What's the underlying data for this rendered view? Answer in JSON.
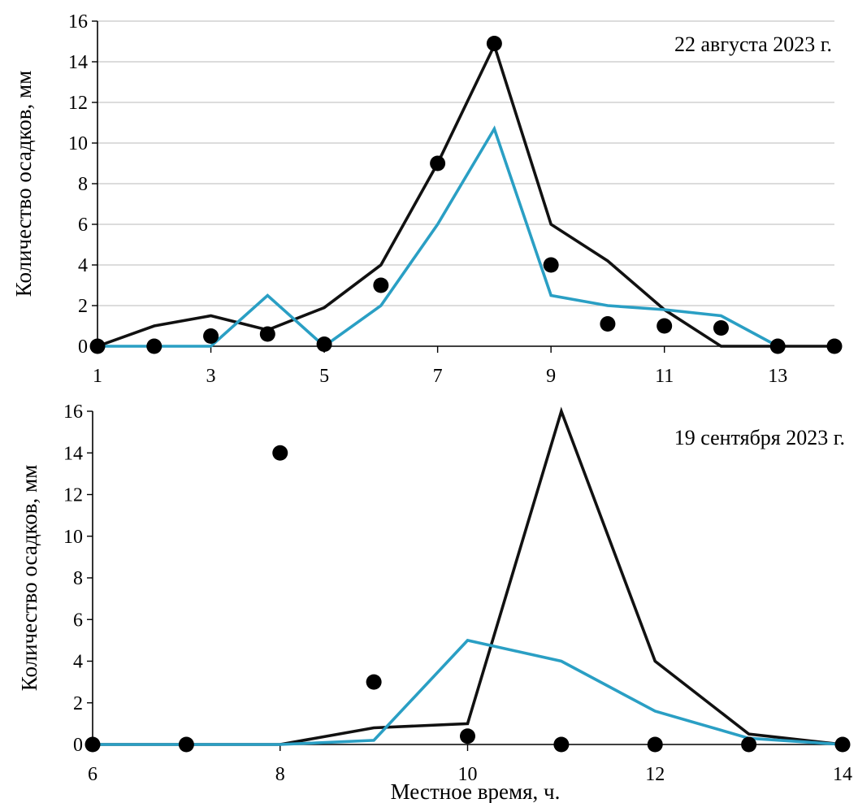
{
  "figure": {
    "xlabel": "Местное время, ч."
  },
  "chart_data": [
    {
      "type": "line",
      "title": "22 августа 2023 г.",
      "ylabel": "Количество осадков, мм",
      "xlabel": "",
      "xlim": [
        1,
        14
      ],
      "ylim": [
        0,
        16
      ],
      "x_ticks": [
        1,
        3,
        5,
        7,
        9,
        11,
        13
      ],
      "y_ticks": [
        0,
        2,
        4,
        6,
        8,
        10,
        12,
        14,
        16
      ],
      "grid": "horizontal",
      "colors": {
        "black_line": "#111111",
        "blue_line": "#2a9fc4",
        "points": "#000000"
      },
      "series": [
        {
          "style": "line-black",
          "x": [
            1,
            2,
            3,
            4,
            5,
            6,
            7,
            8,
            9,
            10,
            11,
            12,
            13,
            14
          ],
          "y": [
            0,
            1.0,
            1.5,
            0.8,
            1.9,
            4.0,
            9.0,
            14.8,
            6.0,
            4.2,
            1.8,
            0,
            0,
            0
          ]
        },
        {
          "style": "line-blue",
          "x": [
            1,
            2,
            3,
            4,
            5,
            6,
            7,
            8,
            9,
            10,
            11,
            12,
            13
          ],
          "y": [
            0,
            0,
            0,
            2.5,
            0,
            2.0,
            6.0,
            10.7,
            2.5,
            2.0,
            1.8,
            1.5,
            0
          ]
        },
        {
          "style": "points",
          "x": [
            1,
            2,
            3,
            4,
            5,
            6,
            7,
            8,
            9,
            10,
            11,
            12,
            13,
            14
          ],
          "y": [
            0,
            0,
            0.5,
            0.6,
            0.1,
            3.0,
            9.0,
            14.9,
            4.0,
            1.1,
            1.0,
            0.9,
            0,
            0
          ]
        }
      ]
    },
    {
      "type": "line",
      "title": "19 сентября 2023 г.",
      "ylabel": "Количество осадков, мм",
      "xlabel": "Местное время, ч.",
      "xlim": [
        6,
        14
      ],
      "ylim": [
        0,
        16
      ],
      "x_ticks": [
        6,
        8,
        10,
        12,
        14
      ],
      "y_ticks": [
        0,
        2,
        4,
        6,
        8,
        10,
        12,
        14,
        16
      ],
      "grid": "none",
      "colors": {
        "black_line": "#111111",
        "blue_line": "#2a9fc4",
        "points": "#000000"
      },
      "series": [
        {
          "style": "line-black",
          "x": [
            6,
            7,
            8,
            9,
            10,
            11,
            12,
            13,
            14
          ],
          "y": [
            0,
            0,
            0,
            0.8,
            1.0,
            16.0,
            4.0,
            0.5,
            0
          ]
        },
        {
          "style": "line-blue",
          "x": [
            6,
            7,
            8,
            9,
            10,
            11,
            12,
            13,
            14
          ],
          "y": [
            0,
            0,
            0,
            0.2,
            5.0,
            4.0,
            1.6,
            0.3,
            0
          ]
        },
        {
          "style": "points",
          "x": [
            6,
            7,
            8,
            9,
            10,
            11,
            12,
            13,
            14
          ],
          "y": [
            0,
            0,
            14.0,
            3.0,
            0.4,
            0,
            0,
            0,
            0
          ]
        }
      ]
    }
  ]
}
